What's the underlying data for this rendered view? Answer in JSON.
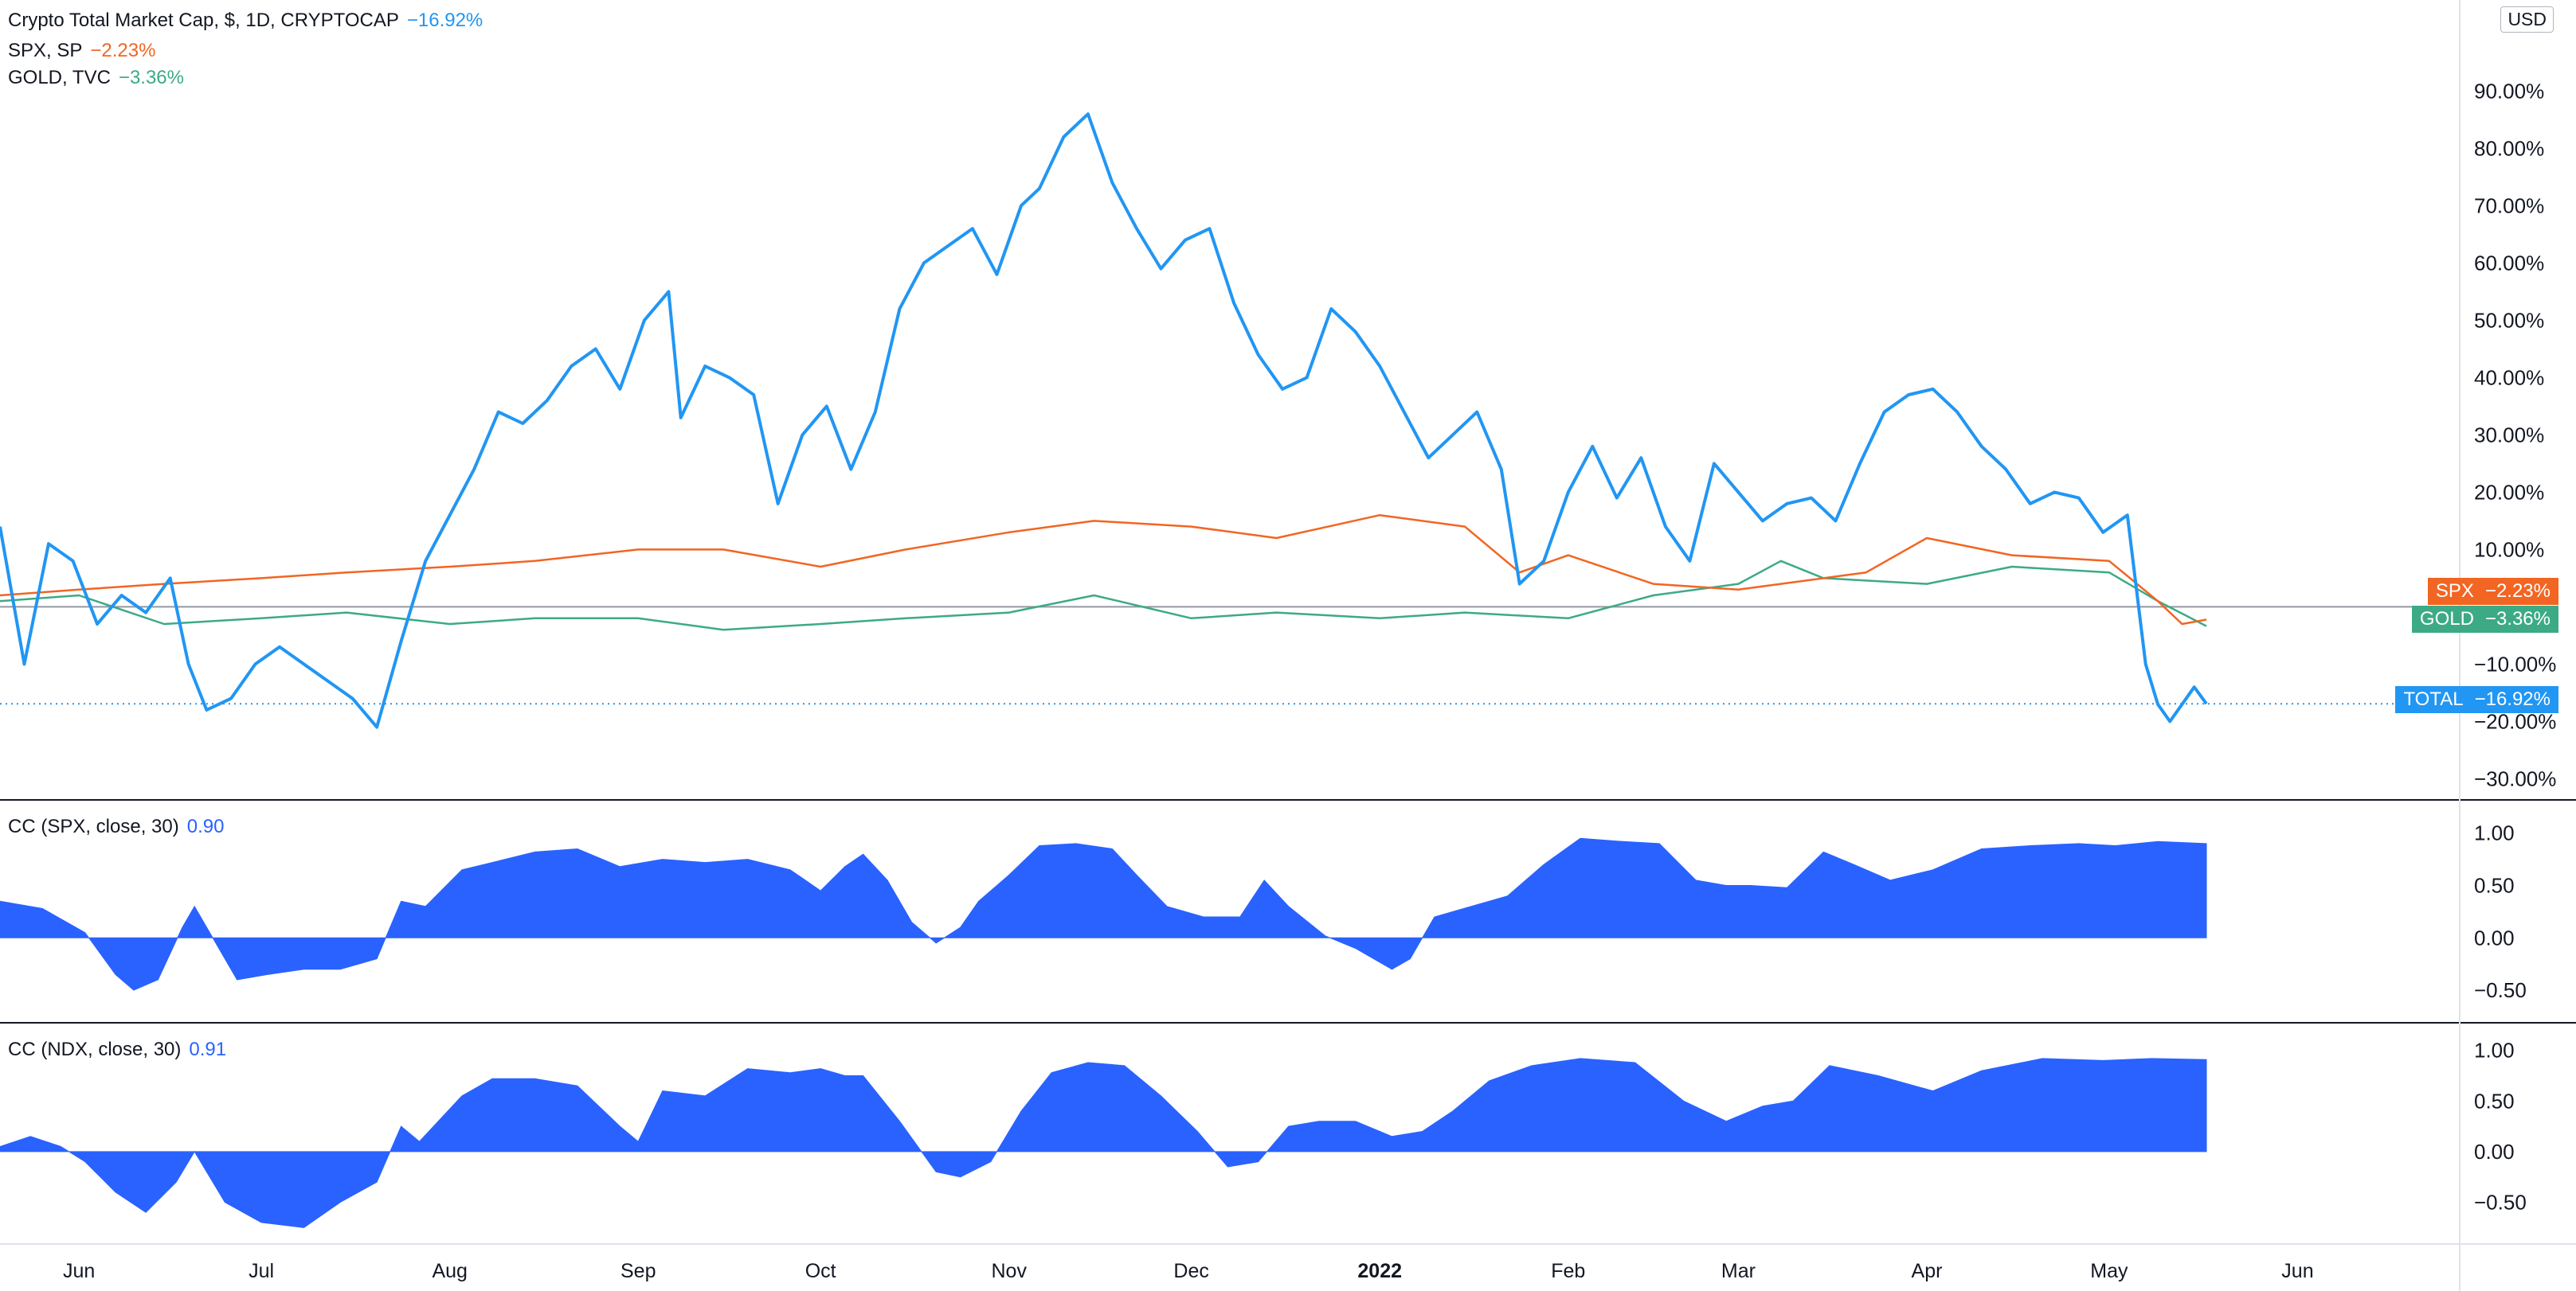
{
  "main_legend": [
    {
      "name": "Crypto Total Market Cap, $, 1D, CRYPTOCAP",
      "change": "−16.92%",
      "color": "#2196f3"
    },
    {
      "name": "SPX, SP",
      "change": "−2.23%",
      "color": "#f26522"
    },
    {
      "name": "GOLD, TVC",
      "change": "−3.36%",
      "color": "#3daa86"
    }
  ],
  "currency": "USD",
  "price_pills": [
    {
      "symbol": "SPX",
      "value": "−2.23%",
      "color": "#f26522"
    },
    {
      "symbol": "GOLD",
      "value": "−3.36%",
      "color": "#3daa86"
    },
    {
      "symbol": "TOTAL",
      "value": "−16.92%",
      "color": "#2196f3"
    }
  ],
  "panes": {
    "cc_spx": {
      "label": "CC (SPX, close, 30)",
      "value": "0.90"
    },
    "cc_ndx": {
      "label": "CC (NDX, close, 30)",
      "value": "0.91"
    }
  },
  "chart_data": [
    {
      "type": "line",
      "title": "Crypto Total Market Cap, $, 1D, CRYPTOCAP",
      "y_unit": "%",
      "ylim": [
        -33,
        102
      ],
      "y_ticks": [
        "90.00%",
        "80.00%",
        "70.00%",
        "60.00%",
        "50.00%",
        "40.00%",
        "30.00%",
        "20.00%",
        "10.00%",
        "−10.00%",
        "−20.00%",
        "−30.00%"
      ],
      "y_tick_values": [
        90,
        80,
        70,
        60,
        50,
        40,
        30,
        20,
        10,
        -10,
        -20,
        -30
      ],
      "x_ticks": [
        "Jun",
        "Jul",
        "Aug",
        "Sep",
        "Oct",
        "Nov",
        "Dec",
        "2022",
        "Feb",
        "Mar",
        "Apr",
        "May",
        "Jun"
      ],
      "x_tick_dates": [
        "2021-06-01",
        "2021-07-01",
        "2021-08-01",
        "2021-09-01",
        "2021-10-01",
        "2021-11-01",
        "2021-12-01",
        "2022-01-01",
        "2022-02-01",
        "2022-03-01",
        "2022-04-01",
        "2022-05-01",
        "2022-06-01"
      ],
      "series": [
        {
          "name": "TOTAL",
          "color": "#2196f3",
          "x": [
            "2021-05-19",
            "2021-05-23",
            "2021-05-27",
            "2021-05-31",
            "2021-06-04",
            "2021-06-08",
            "2021-06-12",
            "2021-06-16",
            "2021-06-19",
            "2021-06-22",
            "2021-06-26",
            "2021-06-30",
            "2021-07-04",
            "2021-07-08",
            "2021-07-12",
            "2021-07-16",
            "2021-07-20",
            "2021-07-24",
            "2021-07-28",
            "2021-08-01",
            "2021-08-05",
            "2021-08-09",
            "2021-08-13",
            "2021-08-17",
            "2021-08-21",
            "2021-08-25",
            "2021-08-29",
            "2021-09-02",
            "2021-09-06",
            "2021-09-08",
            "2021-09-12",
            "2021-09-16",
            "2021-09-20",
            "2021-09-24",
            "2021-09-28",
            "2021-10-02",
            "2021-10-06",
            "2021-10-10",
            "2021-10-14",
            "2021-10-18",
            "2021-10-22",
            "2021-10-26",
            "2021-10-30",
            "2021-11-03",
            "2021-11-06",
            "2021-11-10",
            "2021-11-14",
            "2021-11-18",
            "2021-11-22",
            "2021-11-26",
            "2021-11-30",
            "2021-12-04",
            "2021-12-08",
            "2021-12-12",
            "2021-12-16",
            "2021-12-20",
            "2021-12-24",
            "2021-12-28",
            "2022-01-01",
            "2022-01-05",
            "2022-01-09",
            "2022-01-13",
            "2022-01-17",
            "2022-01-21",
            "2022-01-24",
            "2022-01-28",
            "2022-02-01",
            "2022-02-05",
            "2022-02-09",
            "2022-02-13",
            "2022-02-17",
            "2022-02-21",
            "2022-02-25",
            "2022-03-01",
            "2022-03-05",
            "2022-03-09",
            "2022-03-13",
            "2022-03-17",
            "2022-03-21",
            "2022-03-25",
            "2022-03-29",
            "2022-04-02",
            "2022-04-06",
            "2022-04-10",
            "2022-04-14",
            "2022-04-18",
            "2022-04-22",
            "2022-04-26",
            "2022-04-30",
            "2022-05-04",
            "2022-05-07",
            "2022-05-09",
            "2022-05-11",
            "2022-05-13",
            "2022-05-15",
            "2022-05-17"
          ],
          "values": [
            14,
            -10,
            11,
            8,
            -3,
            2,
            -1,
            5,
            -10,
            -18,
            -16,
            -10,
            -7,
            -10,
            -13,
            -16,
            -21,
            -6,
            8,
            16,
            24,
            34,
            32,
            36,
            42,
            45,
            38,
            50,
            55,
            33,
            42,
            40,
            37,
            18,
            30,
            35,
            24,
            34,
            52,
            60,
            63,
            66,
            58,
            70,
            73,
            82,
            86,
            74,
            66,
            59,
            64,
            66,
            53,
            44,
            38,
            40,
            52,
            48,
            42,
            34,
            26,
            30,
            34,
            24,
            4,
            8,
            20,
            28,
            19,
            26,
            14,
            8,
            25,
            20,
            15,
            18,
            19,
            15,
            25,
            34,
            37,
            38,
            34,
            28,
            24,
            18,
            20,
            19,
            13,
            16,
            -10,
            -17,
            -20,
            -17,
            -14,
            -16.92
          ]
        },
        {
          "name": "SPX",
          "color": "#f26522",
          "x": [
            "2021-05-19",
            "2021-06-01",
            "2021-06-15",
            "2021-07-01",
            "2021-07-15",
            "2021-08-01",
            "2021-08-15",
            "2021-09-01",
            "2021-09-15",
            "2021-10-01",
            "2021-10-15",
            "2021-11-01",
            "2021-11-15",
            "2021-12-01",
            "2021-12-15",
            "2022-01-01",
            "2022-01-15",
            "2022-01-24",
            "2022-02-01",
            "2022-02-15",
            "2022-03-01",
            "2022-03-15",
            "2022-03-22",
            "2022-04-01",
            "2022-04-15",
            "2022-05-01",
            "2022-05-09",
            "2022-05-13",
            "2022-05-17"
          ],
          "values": [
            2,
            3,
            4,
            5,
            6,
            7,
            8,
            10,
            10,
            7,
            10,
            13,
            15,
            14,
            12,
            16,
            14,
            6,
            9,
            4,
            3,
            5,
            6,
            12,
            9,
            8,
            1,
            -3,
            -2.23
          ]
        },
        {
          "name": "GOLD",
          "color": "#3daa86",
          "x": [
            "2021-05-19",
            "2021-06-01",
            "2021-06-15",
            "2021-07-01",
            "2021-07-15",
            "2021-08-01",
            "2021-08-15",
            "2021-09-01",
            "2021-09-15",
            "2021-10-01",
            "2021-10-15",
            "2021-11-01",
            "2021-11-15",
            "2021-12-01",
            "2021-12-15",
            "2022-01-01",
            "2022-01-15",
            "2022-02-01",
            "2022-02-15",
            "2022-03-01",
            "2022-03-08",
            "2022-03-15",
            "2022-04-01",
            "2022-04-15",
            "2022-05-01",
            "2022-05-09",
            "2022-05-17"
          ],
          "values": [
            1,
            2,
            -3,
            -2,
            -1,
            -3,
            -2,
            -2,
            -4,
            -3,
            -2,
            -1,
            2,
            -2,
            -1,
            -2,
            -1,
            -2,
            2,
            4,
            8,
            5,
            4,
            7,
            6,
            1,
            -3.36
          ]
        }
      ],
      "baseline": 0,
      "last_value_line": -16.92
    },
    {
      "type": "area",
      "title": "CC (SPX, close, 30)",
      "ylim": [
        -0.75,
        1.15
      ],
      "y_ticks": [
        "1.00",
        "0.50",
        "0.00",
        "−0.50"
      ],
      "y_tick_values": [
        1,
        0.5,
        0,
        -0.5
      ],
      "color": "#2962ff",
      "x": [
        "2021-05-19",
        "2021-05-26",
        "2021-06-02",
        "2021-06-07",
        "2021-06-10",
        "2021-06-14",
        "2021-06-18",
        "2021-06-20",
        "2021-06-23",
        "2021-06-27",
        "2021-07-02",
        "2021-07-08",
        "2021-07-14",
        "2021-07-20",
        "2021-07-24",
        "2021-07-28",
        "2021-08-03",
        "2021-08-08",
        "2021-08-15",
        "2021-08-22",
        "2021-08-29",
        "2021-09-05",
        "2021-09-12",
        "2021-09-19",
        "2021-09-26",
        "2021-10-01",
        "2021-10-05",
        "2021-10-08",
        "2021-10-12",
        "2021-10-16",
        "2021-10-20",
        "2021-10-24",
        "2021-10-27",
        "2021-11-01",
        "2021-11-06",
        "2021-11-12",
        "2021-11-18",
        "2021-11-22",
        "2021-11-27",
        "2021-12-03",
        "2021-12-09",
        "2021-12-13",
        "2021-12-17",
        "2021-12-23",
        "2021-12-28",
        "2022-01-03",
        "2022-01-06",
        "2022-01-10",
        "2022-01-16",
        "2022-01-22",
        "2022-01-28",
        "2022-02-03",
        "2022-02-10",
        "2022-02-16",
        "2022-02-22",
        "2022-02-27",
        "2022-03-03",
        "2022-03-09",
        "2022-03-15",
        "2022-03-20",
        "2022-03-26",
        "2022-04-02",
        "2022-04-10",
        "2022-04-18",
        "2022-04-26",
        "2022-05-02",
        "2022-05-09",
        "2022-05-17"
      ],
      "values": [
        0.35,
        0.28,
        0.05,
        -0.35,
        -0.5,
        -0.4,
        0.1,
        0.3,
        0.0,
        -0.4,
        -0.35,
        -0.3,
        -0.3,
        -0.2,
        0.35,
        0.3,
        0.65,
        0.72,
        0.82,
        0.85,
        0.68,
        0.75,
        0.72,
        0.75,
        0.65,
        0.45,
        0.68,
        0.8,
        0.55,
        0.15,
        -0.05,
        0.1,
        0.35,
        0.6,
        0.88,
        0.9,
        0.85,
        0.6,
        0.3,
        0.2,
        0.2,
        0.55,
        0.3,
        0.02,
        -0.1,
        -0.3,
        -0.2,
        0.2,
        0.3,
        0.4,
        0.7,
        0.95,
        0.92,
        0.9,
        0.55,
        0.5,
        0.5,
        0.48,
        0.82,
        0.7,
        0.55,
        0.65,
        0.85,
        0.88,
        0.9,
        0.88,
        0.92,
        0.9
      ]
    },
    {
      "type": "area",
      "title": "CC (NDX, close, 30)",
      "ylim": [
        -0.85,
        1.1
      ],
      "y_ticks": [
        "1.00",
        "0.50",
        "0.00",
        "−0.50"
      ],
      "y_tick_values": [
        1,
        0.5,
        0,
        -0.5
      ],
      "color": "#2962ff",
      "x": [
        "2021-05-19",
        "2021-05-24",
        "2021-05-29",
        "2021-06-02",
        "2021-06-07",
        "2021-06-12",
        "2021-06-17",
        "2021-06-20",
        "2021-06-25",
        "2021-07-01",
        "2021-07-08",
        "2021-07-14",
        "2021-07-20",
        "2021-07-24",
        "2021-07-27",
        "2021-08-03",
        "2021-08-08",
        "2021-08-15",
        "2021-08-22",
        "2021-08-29",
        "2021-09-01",
        "2021-09-05",
        "2021-09-12",
        "2021-09-19",
        "2021-09-26",
        "2021-10-01",
        "2021-10-05",
        "2021-10-08",
        "2021-10-14",
        "2021-10-20",
        "2021-10-24",
        "2021-10-29",
        "2021-11-03",
        "2021-11-08",
        "2021-11-14",
        "2021-11-20",
        "2021-11-26",
        "2021-12-02",
        "2021-12-07",
        "2021-12-12",
        "2021-12-17",
        "2021-12-22",
        "2021-12-28",
        "2022-01-03",
        "2022-01-08",
        "2022-01-13",
        "2022-01-19",
        "2022-01-26",
        "2022-02-03",
        "2022-02-12",
        "2022-02-20",
        "2022-02-27",
        "2022-03-05",
        "2022-03-10",
        "2022-03-16",
        "2022-03-24",
        "2022-04-02",
        "2022-04-10",
        "2022-04-20",
        "2022-04-30",
        "2022-05-08",
        "2022-05-17"
      ],
      "values": [
        0.05,
        0.15,
        0.05,
        -0.1,
        -0.4,
        -0.6,
        -0.3,
        0.0,
        -0.5,
        -0.7,
        -0.75,
        -0.5,
        -0.3,
        0.25,
        0.1,
        0.55,
        0.72,
        0.72,
        0.65,
        0.25,
        0.1,
        0.6,
        0.55,
        0.82,
        0.78,
        0.82,
        0.75,
        0.75,
        0.3,
        -0.2,
        -0.25,
        -0.1,
        0.4,
        0.78,
        0.88,
        0.85,
        0.55,
        0.2,
        -0.15,
        -0.1,
        0.25,
        0.3,
        0.3,
        0.15,
        0.2,
        0.4,
        0.7,
        0.85,
        0.92,
        0.88,
        0.5,
        0.3,
        0.45,
        0.5,
        0.85,
        0.75,
        0.6,
        0.8,
        0.92,
        0.9,
        0.92,
        0.91
      ]
    }
  ]
}
